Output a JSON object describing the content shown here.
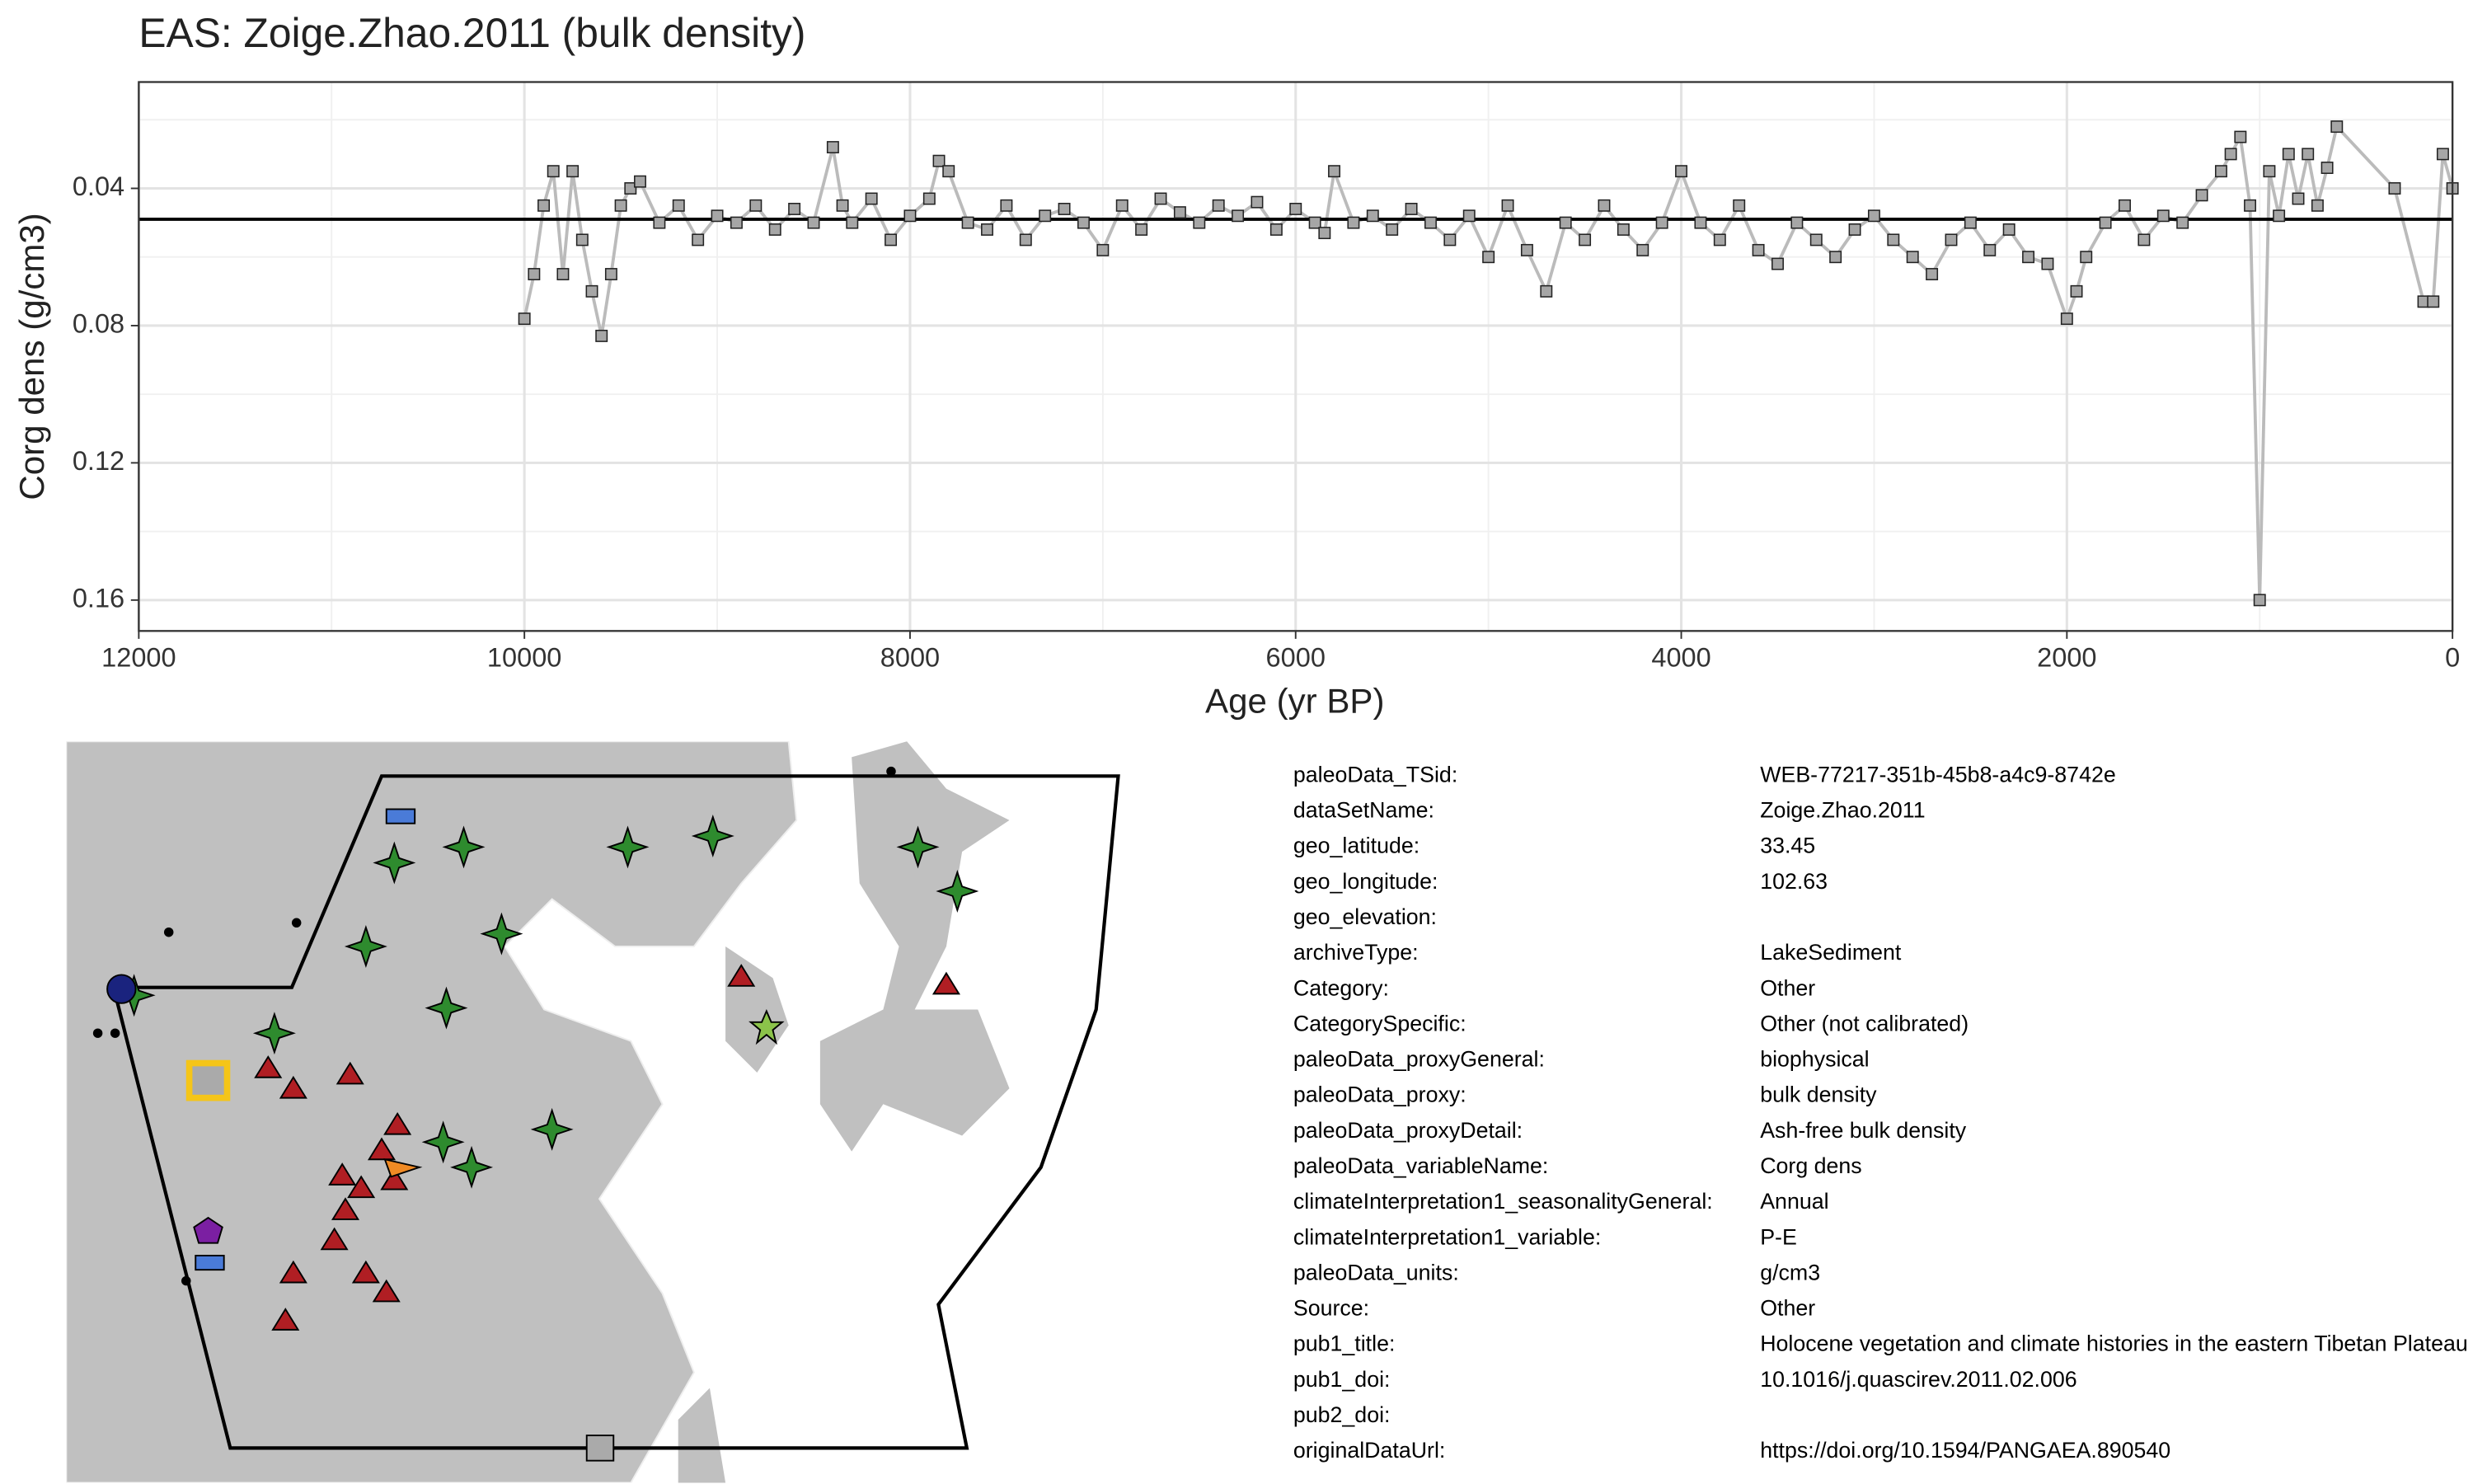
{
  "chart_data": {
    "type": "line",
    "title": "EAS: Zoige.Zhao.2011 (bulk density)",
    "x_label": "Age (yr BP)",
    "y_label": "Corg dens (g/cm3)",
    "xlim": [
      12000,
      0
    ],
    "ylim": [
      0.169,
      0.009
    ],
    "xticks": [
      12000,
      10000,
      8000,
      6000,
      4000,
      2000,
      0
    ],
    "yticks": [
      0.04,
      0.08,
      0.12,
      0.16
    ],
    "x_minor_ticks": [
      11000,
      9000,
      7000,
      5000,
      3000,
      1000
    ],
    "y_minor_ticks": [
      0.02,
      0.06,
      0.1,
      0.14
    ],
    "grid": true,
    "hline": 0.049,
    "line_color": "#bbbbbb",
    "marker_color": "#a6a6a6",
    "x": [
      10000,
      9950,
      9900,
      9850,
      9800,
      9750,
      9700,
      9650,
      9600,
      9550,
      9500,
      9450,
      9400,
      9300,
      9200,
      9100,
      9000,
      8900,
      8800,
      8700,
      8600,
      8500,
      8400,
      8350,
      8300,
      8200,
      8100,
      8000,
      7900,
      7850,
      7800,
      7700,
      7600,
      7500,
      7400,
      7300,
      7200,
      7100,
      7000,
      6900,
      6800,
      6700,
      6600,
      6500,
      6400,
      6300,
      6200,
      6100,
      6000,
      5900,
      5850,
      5800,
      5700,
      5600,
      5500,
      5400,
      5300,
      5200,
      5100,
      5000,
      4900,
      4800,
      4700,
      4600,
      4500,
      4400,
      4300,
      4200,
      4100,
      4000,
      3900,
      3800,
      3700,
      3600,
      3500,
      3400,
      3300,
      3200,
      3100,
      3000,
      2900,
      2800,
      2700,
      2600,
      2500,
      2400,
      2300,
      2200,
      2100,
      2000,
      1950,
      1900,
      1800,
      1700,
      1600,
      1500,
      1400,
      1300,
      1200,
      1150,
      1100,
      1050,
      1000,
      950,
      900,
      850,
      800,
      750,
      700,
      650,
      600,
      300,
      150,
      100,
      50,
      0
    ],
    "values": [
      0.078,
      0.065,
      0.045,
      0.035,
      0.065,
      0.035,
      0.055,
      0.07,
      0.083,
      0.065,
      0.045,
      0.04,
      0.038,
      0.05,
      0.045,
      0.055,
      0.048,
      0.05,
      0.045,
      0.052,
      0.046,
      0.05,
      0.028,
      0.045,
      0.05,
      0.043,
      0.055,
      0.048,
      0.043,
      0.032,
      0.035,
      0.05,
      0.052,
      0.045,
      0.055,
      0.048,
      0.046,
      0.05,
      0.058,
      0.045,
      0.052,
      0.043,
      0.047,
      0.05,
      0.045,
      0.048,
      0.044,
      0.052,
      0.046,
      0.05,
      0.053,
      0.035,
      0.05,
      0.048,
      0.052,
      0.046,
      0.05,
      0.055,
      0.048,
      0.06,
      0.045,
      0.058,
      0.07,
      0.05,
      0.055,
      0.045,
      0.052,
      0.058,
      0.05,
      0.035,
      0.05,
      0.055,
      0.045,
      0.058,
      0.062,
      0.05,
      0.055,
      0.06,
      0.052,
      0.048,
      0.055,
      0.06,
      0.065,
      0.055,
      0.05,
      0.058,
      0.052,
      0.06,
      0.062,
      0.078,
      0.07,
      0.06,
      0.05,
      0.045,
      0.055,
      0.048,
      0.05,
      0.042,
      0.035,
      0.03,
      0.025,
      0.045,
      0.16,
      0.035,
      0.048,
      0.03,
      0.043,
      0.03,
      0.045,
      0.034,
      0.022,
      0.04,
      0.073,
      0.073,
      0.03,
      0.04
    ]
  },
  "metadata": {
    "rows": [
      [
        "paleoData_TSid:",
        "WEB-77217-351b-45b8-a4c9-8742e"
      ],
      [
        "dataSetName:",
        "Zoige.Zhao.2011"
      ],
      [
        "geo_latitude:",
        "33.45"
      ],
      [
        "geo_longitude:",
        "102.63"
      ],
      [
        "geo_elevation:"
      ],
      [
        "archiveType:",
        "LakeSediment"
      ],
      [
        "Category:",
        "Other"
      ],
      [
        "CategorySpecific:",
        "Other (not calibrated)"
      ],
      [
        "paleoData_proxyGeneral:",
        "biophysical"
      ],
      [
        "paleoData_proxy:",
        "bulk density"
      ],
      [
        "paleoData_proxyDetail:",
        "Ash-free bulk density"
      ],
      [
        "paleoData_variableName:",
        "Corg dens"
      ],
      [
        "climateInterpretation1_seasonalityGeneral:",
        "Annual"
      ],
      [
        "climateInterpretation1_variable:",
        "P-E"
      ],
      [
        "paleoData_units:",
        "g/cm3"
      ],
      [
        "Source:",
        "Other"
      ],
      [
        "pub1_title:",
        "Holocene vegetation and climate histories in the eastern Tibetan Plateau"
      ],
      [
        "pub1_doi:",
        "10.1016/j.quascirev.2011.02.006"
      ],
      [
        "pub2_doi:"
      ],
      [
        "originalDataUrl:",
        "https://doi.org/10.1594/PANGAEA.890540"
      ]
    ]
  }
}
